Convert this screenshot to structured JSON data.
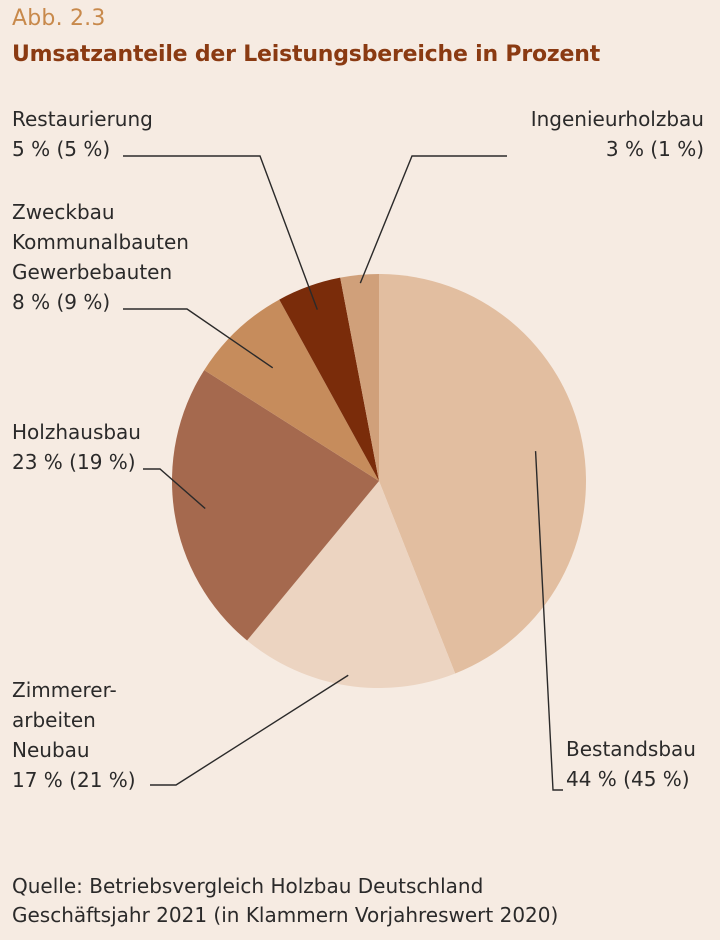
{
  "figure_label": "Abb. 2.3",
  "source": {
    "line1": "Quelle: Betriebsvergleich Holzbau Deutschland",
    "line2": "Geschäftsjahr 2021 (in Klammern Vorjahreswert 2020)"
  },
  "chart_data": {
    "type": "pie",
    "title": "Umsatzanteile der Leistungsbereiche in Prozent",
    "unit": "%",
    "slices": [
      {
        "label_lines": [
          "Bestandsbau"
        ],
        "value": 44,
        "previous_value": 45,
        "value_text": "44 % (45 %)",
        "color": "#e2bea0"
      },
      {
        "label_lines": [
          "Zimmerer-",
          "arbeiten",
          "Neubau"
        ],
        "value": 17,
        "previous_value": 21,
        "value_text": "17 % (21 %)",
        "color": "#ecd4c1"
      },
      {
        "label_lines": [
          "Holzhausbau"
        ],
        "value": 23,
        "previous_value": 19,
        "value_text": "23 % (19 %)",
        "color": "#a5694e"
      },
      {
        "label_lines": [
          "Zweckbau",
          "Kommunalbauten",
          "Gewerbebauten"
        ],
        "value": 8,
        "previous_value": 9,
        "value_text": "8 % (9 %)",
        "color": "#c68c5c"
      },
      {
        "label_lines": [
          "Restaurierung"
        ],
        "value": 5,
        "previous_value": 5,
        "value_text": "5 % (5 %)",
        "color": "#7a2c0a"
      },
      {
        "label_lines": [
          "Ingenieurholzbau"
        ],
        "value": 3,
        "previous_value": 1,
        "value_text": "3 % (1 %)",
        "color": "#d0a07a"
      }
    ]
  }
}
